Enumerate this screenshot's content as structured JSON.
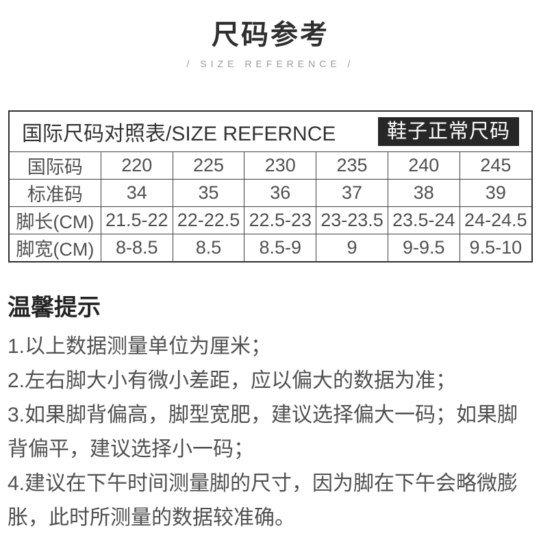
{
  "page": {
    "title": "尺码参考",
    "subtitle": "/ SIZE REFERENCE /"
  },
  "size_table": {
    "title": "国际尺码对照表/SIZE REFERNCE",
    "badge": "鞋子正常尺码",
    "rows": [
      {
        "label": "国际码",
        "values": [
          "220",
          "225",
          "230",
          "235",
          "240",
          "245"
        ]
      },
      {
        "label": "标准码",
        "values": [
          "34",
          "35",
          "36",
          "37",
          "38",
          "39"
        ]
      },
      {
        "label": "脚长(CM)",
        "values": [
          "21.5-22",
          "22-22.5",
          "22.5-23",
          "23-23.5",
          "23.5-24",
          "24-24.5"
        ]
      },
      {
        "label": "脚宽(CM)",
        "values": [
          "8-8.5",
          "8.5",
          "8.5-9",
          "9",
          "9-9.5",
          "9.5-10"
        ]
      }
    ]
  },
  "tips": {
    "heading": "温馨提示",
    "items": [
      "1.以上数据测量单位为厘米；",
      "2.左右脚大小有微小差距，应以偏大的数据为准；",
      "3.如果脚背偏高，脚型宽肥，建议选择偏大一码；如果脚背偏平，建议选择小一码；",
      "4.建议在下午时间测量脚的尺寸，因为脚在下午会略微膨胀，此时所测量的数据较准确。"
    ]
  },
  "colors": {
    "badge_bg": "#272727",
    "badge_text": "#ffffff",
    "border_color": "#3f3f3f",
    "outer_border": "#2e2e2e",
    "text_dark": "#2f2f2f",
    "text_gray": "#505050",
    "subtitle_gray": "#9b9b9b",
    "page_bg": "#ffffff"
  }
}
